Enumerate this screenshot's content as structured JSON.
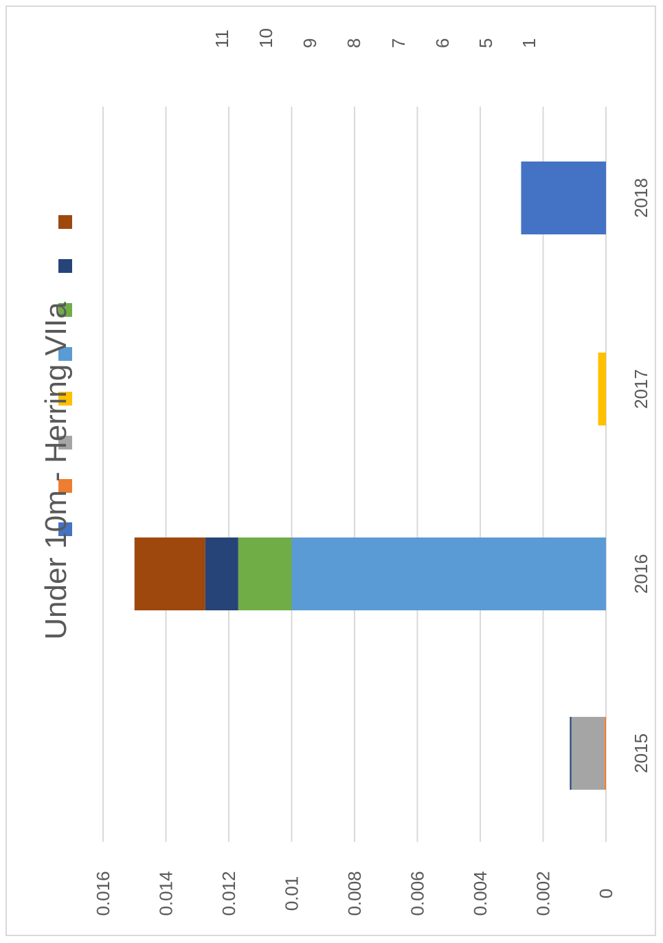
{
  "chart_data": {
    "type": "bar",
    "stacked": true,
    "orientation": "rotated",
    "title": "Under 10m  - Herring VIIa",
    "categories": [
      "2015",
      "2016",
      "2017",
      "2018"
    ],
    "ylim": [
      0,
      0.016
    ],
    "yticks": [
      0,
      0.002,
      0.004,
      0.006,
      0.008,
      0.01,
      0.012,
      0.014,
      0.016
    ],
    "ytick_labels": [
      "0",
      "0.002",
      "0.004",
      "0.006",
      "0.008",
      "0.01",
      "0.012",
      "0.014",
      "0.016"
    ],
    "grid": true,
    "legend_position": "top",
    "series": [
      {
        "name": "1",
        "color": "#4472c4",
        "values": [
          0,
          0,
          0,
          0.0027
        ]
      },
      {
        "name": "5",
        "color": "#ed7d31",
        "values": [
          5e-05,
          0,
          0,
          0
        ]
      },
      {
        "name": "6",
        "color": "#a5a5a5",
        "values": [
          0.00105,
          0,
          0,
          0
        ]
      },
      {
        "name": "7",
        "color": "#ffc000",
        "values": [
          0,
          0,
          0.00025,
          0
        ]
      },
      {
        "name": "8",
        "color": "#5b9bd5",
        "values": [
          0,
          0.01,
          0,
          0
        ]
      },
      {
        "name": "9",
        "color": "#70ad47",
        "values": [
          0,
          0.0017,
          0,
          0
        ]
      },
      {
        "name": "10",
        "color": "#264478",
        "values": [
          5e-05,
          0.00105,
          0,
          0
        ]
      },
      {
        "name": "11",
        "color": "#9e480e",
        "values": [
          0,
          0.00225,
          0,
          0
        ]
      }
    ]
  }
}
